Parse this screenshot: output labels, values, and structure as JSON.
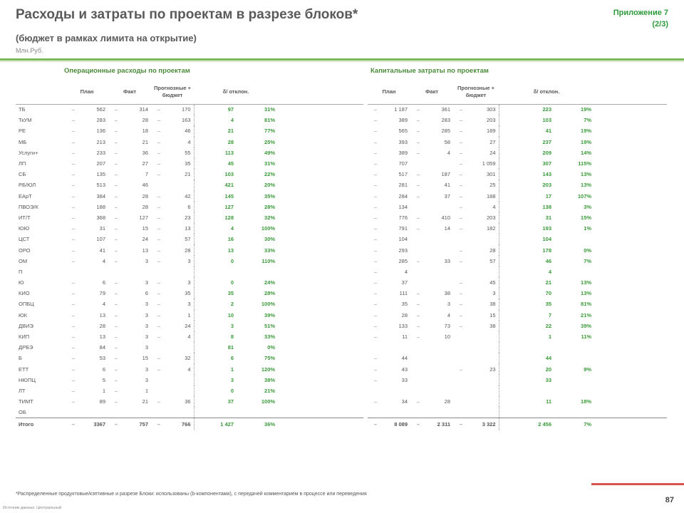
{
  "header": {
    "title": "Расходы и затраты по проектам в разрезе блоков*",
    "subtitle": "(бюджет в рамках лимита на открытие)",
    "units": "Млн.Руб.",
    "appendix_line1": "Приложение 7",
    "appendix_line2": "(2/3)"
  },
  "left": {
    "section_title": "Операционные расходы по проектам",
    "col_plan": "План",
    "col_fact": "Факт",
    "col_forecast": "Прогнозные + бюджет",
    "col_delta": "δ/ отклон.",
    "rows": [
      {
        "name": "ТБ",
        "plan": "562",
        "fact": "314",
        "fc": "170",
        "d1": "97",
        "d2": "31%"
      },
      {
        "name": "ТкУМ",
        "plan": "283",
        "fact": "28",
        "fc": "163",
        "d1": "4",
        "d2": "81%"
      },
      {
        "name": "РЕ",
        "plan": "136",
        "fact": "18",
        "fc": "46",
        "d1": "21",
        "d2": "77%"
      },
      {
        "name": "МБ",
        "plan": "213",
        "fact": "21",
        "fc": "4",
        "d1": "28",
        "d2": "25%"
      },
      {
        "name": "Услуги+",
        "plan": "233",
        "fact": "36",
        "fc": "55",
        "d1": "113",
        "d2": "49%"
      },
      {
        "name": "ЛП",
        "plan": "207",
        "fact": "27",
        "fc": "35",
        "d1": "45",
        "d2": "31%"
      },
      {
        "name": "СБ",
        "plan": "135",
        "fact": "7",
        "fc": "21",
        "d1": "103",
        "d2": "22%"
      },
      {
        "name": "РБ/ЮЛ",
        "plan": "513",
        "fact": "46",
        "fc": "",
        "d1": "421",
        "d2": "20%"
      },
      {
        "name": "ЕАрТ",
        "plan": "384",
        "fact": "28",
        "fc": "42",
        "d1": "145",
        "d2": "35%"
      },
      {
        "name": "ПВОЭ/К",
        "plan": "188",
        "fact": "28",
        "fc": "6",
        "d1": "127",
        "d2": "28%"
      },
      {
        "name": "ИТ/Т",
        "plan": "368",
        "fact": "127",
        "fc": "23",
        "d1": "128",
        "d2": "32%"
      },
      {
        "name": "ЮЮ",
        "plan": "31",
        "fact": "15",
        "fc": "13",
        "d1": "4",
        "d2": "100%"
      },
      {
        "name": "ЦСТ",
        "plan": "107",
        "fact": "24",
        "fc": "57",
        "d1": "16",
        "d2": "30%"
      },
      {
        "name": "ОРО",
        "plan": "41",
        "fact": "13",
        "fc": "28",
        "d1": "13",
        "d2": "33%"
      },
      {
        "name": "ОМ",
        "plan": "4",
        "fact": "3",
        "fc": "3",
        "d1": "0",
        "d2": "110%"
      },
      {
        "name": "П",
        "plan": "",
        "fact": "",
        "fc": "",
        "d1": "",
        "d2": ""
      },
      {
        "name": "Ю",
        "plan": "6",
        "fact": "3",
        "fc": "3",
        "d1": "0",
        "d2": "24%"
      },
      {
        "name": "КИО",
        "plan": "79",
        "fact": "6",
        "fc": "35",
        "d1": "35",
        "d2": "28%"
      },
      {
        "name": "ОПБЦ",
        "plan": "4",
        "fact": "3",
        "fc": "3",
        "d1": "2",
        "d2": "100%"
      },
      {
        "name": "ЮК",
        "plan": "13",
        "fact": "3",
        "fc": "1",
        "d1": "10",
        "d2": "39%"
      },
      {
        "name": "ДВИЭ",
        "plan": "28",
        "fact": "3",
        "fc": "24",
        "d1": "3",
        "d2": "51%"
      },
      {
        "name": "КИП",
        "plan": "13",
        "fact": "3",
        "fc": "4",
        "d1": "8",
        "d2": "33%"
      },
      {
        "name": "ДРБЭ",
        "plan": "84",
        "fact": "3",
        "fc": "",
        "d1": "81",
        "d2": "0%"
      },
      {
        "name": "Б",
        "plan": "53",
        "fact": "15",
        "fc": "32",
        "d1": "6",
        "d2": "75%"
      },
      {
        "name": "ЕТТ",
        "plan": "6",
        "fact": "3",
        "fc": "4",
        "d1": "1",
        "d2": "120%"
      },
      {
        "name": "НЮПЦ",
        "plan": "5",
        "fact": "3",
        "fc": "",
        "d1": "3",
        "d2": "38%"
      },
      {
        "name": "ЛТ",
        "plan": "1",
        "fact": "1",
        "fc": "",
        "d1": "0",
        "d2": "21%"
      },
      {
        "name": "ТИМТ",
        "plan": "89",
        "fact": "21",
        "fc": "36",
        "d1": "37",
        "d2": "100%"
      },
      {
        "name": "ОБ",
        "plan": "",
        "fact": "",
        "fc": "",
        "d1": "",
        "d2": ""
      }
    ],
    "total": {
      "name": "Итого",
      "plan": "3367",
      "fact": "757",
      "fc": "766",
      "d1": "1 427",
      "d2": "36%"
    }
  },
  "right": {
    "section_title": "Капитальные затраты по проектам",
    "col_plan": "План",
    "col_fact": "Факт",
    "col_forecast": "Прогнозные + бюджет",
    "col_delta": "δ/ отклон.",
    "rows": [
      {
        "plan": "1 187",
        "fact": "361",
        "fc": "303",
        "d1": "223",
        "d2": "19%"
      },
      {
        "plan": "389",
        "fact": "283",
        "fc": "203",
        "d1": "103",
        "d2": "7%"
      },
      {
        "plan": "565",
        "fact": "285",
        "fc": "189",
        "d1": "41",
        "d2": "19%"
      },
      {
        "plan": "393",
        "fact": "58",
        "fc": "27",
        "d1": "237",
        "d2": "19%"
      },
      {
        "plan": "389",
        "fact": "4",
        "fc": "24",
        "d1": "209",
        "d2": "14%"
      },
      {
        "plan": "707",
        "fact": "",
        "fc": "1 059",
        "d1": "307",
        "d2": "115%"
      },
      {
        "plan": "517",
        "fact": "187",
        "fc": "301",
        "d1": "143",
        "d2": "13%"
      },
      {
        "plan": "281",
        "fact": "41",
        "fc": "25",
        "d1": "203",
        "d2": "13%"
      },
      {
        "plan": "284",
        "fact": "37",
        "fc": "188",
        "d1": "17",
        "d2": "107%"
      },
      {
        "plan": "134",
        "fact": "",
        "fc": "4",
        "d1": "138",
        "d2": "3%"
      },
      {
        "plan": "776",
        "fact": "410",
        "fc": "203",
        "d1": "31",
        "d2": "15%"
      },
      {
        "plan": "791",
        "fact": "14",
        "fc": "182",
        "d1": "193",
        "d2": "1%"
      },
      {
        "plan": "104",
        "fact": "",
        "fc": "",
        "d1": "104",
        "d2": ""
      },
      {
        "plan": "293",
        "fact": "",
        "fc": "28",
        "d1": "178",
        "d2": "0%"
      },
      {
        "plan": "285",
        "fact": "33",
        "fc": "57",
        "d1": "46",
        "d2": "7%"
      },
      {
        "plan": "4",
        "fact": "",
        "fc": "",
        "d1": "4",
        "d2": ""
      },
      {
        "plan": "37",
        "fact": "",
        "fc": "45",
        "d1": "21",
        "d2": "13%"
      },
      {
        "plan": "111",
        "fact": "38",
        "fc": "3",
        "d1": "70",
        "d2": "13%"
      },
      {
        "plan": "35",
        "fact": "3",
        "fc": "38",
        "d1": "35",
        "d2": "81%"
      },
      {
        "plan": "28",
        "fact": "4",
        "fc": "15",
        "d1": "7",
        "d2": "21%"
      },
      {
        "plan": "133",
        "fact": "73",
        "fc": "38",
        "d1": "22",
        "d2": "39%"
      },
      {
        "plan": "11",
        "fact": "10",
        "fc": "",
        "d1": "1",
        "d2": "11%"
      },
      {
        "plan": "",
        "fact": "",
        "fc": "",
        "d1": "",
        "d2": ""
      },
      {
        "plan": "44",
        "fact": "",
        "fc": "",
        "d1": "44",
        "d2": ""
      },
      {
        "plan": "43",
        "fact": "",
        "fc": "23",
        "d1": "20",
        "d2": "9%"
      },
      {
        "plan": "33",
        "fact": "",
        "fc": "",
        "d1": "33",
        "d2": ""
      },
      {
        "plan": "",
        "fact": "",
        "fc": "",
        "d1": "",
        "d2": ""
      },
      {
        "plan": "34",
        "fact": "28",
        "fc": "",
        "d1": "11",
        "d2": "18%"
      },
      {
        "plan": "",
        "fact": "",
        "fc": "",
        "d1": "",
        "d2": ""
      }
    ],
    "total": {
      "plan": "8 089",
      "fact": "2 311",
      "fc": "3 322",
      "d1": "2 456",
      "d2": "7%"
    }
  },
  "footnote": "*Распределенные продуктовые/кэптивные и разрезе Блоки: использованы (b-компонентами), с передачей комментарием в процессе или переведения",
  "footsrc": "Источник данных: Центральный",
  "page_number": "87",
  "colors": {
    "accent_green": "#3a9a3a",
    "rule_green": "#7ab857",
    "rule_red": "#d9534f"
  }
}
